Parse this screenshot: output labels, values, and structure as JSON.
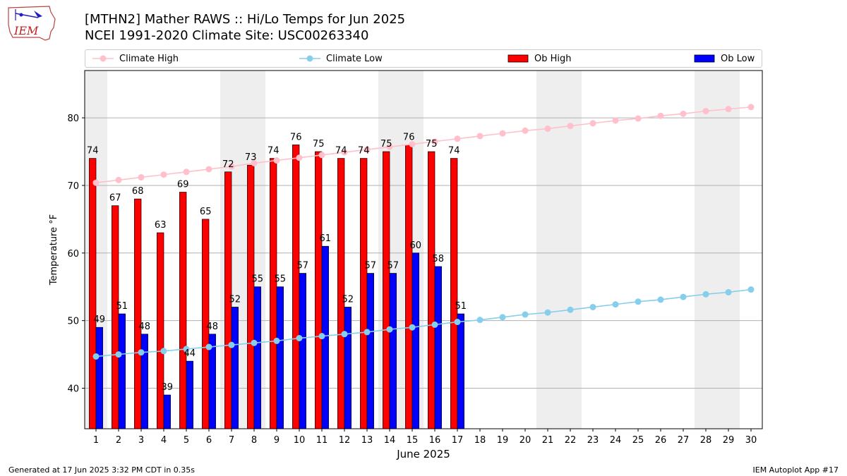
{
  "header": {
    "title_line1": "[MTHN2] Mather RAWS :: Hi/Lo Temps for Jun 2025",
    "title_line2": "NCEI 1991-2020 Climate Site: USC00263340",
    "logo_text": "IEM"
  },
  "legend": {
    "climate_high": "Climate High",
    "climate_low": "Climate Low",
    "ob_high": "Ob High",
    "ob_low": "Ob Low"
  },
  "footer": {
    "left": "Generated at 17 Jun 2025 3:32 PM CDT in 0.35s",
    "right": "IEM Autoplot App #17"
  },
  "colors": {
    "ob_high": "#ff0000",
    "ob_low": "#0000ff",
    "climate_high": "#ffc0cb",
    "climate_low": "#87ceeb",
    "weekend_shade": "#eeeeee",
    "grid": "#b0b0b0"
  },
  "chart_data": {
    "type": "bar",
    "xlabel": "June 2025",
    "ylabel": "Temperature °F",
    "ylim": [
      34,
      87
    ],
    "yticks": [
      40,
      50,
      60,
      70,
      80
    ],
    "grid": "horizontal",
    "legend_position": "top",
    "days": [
      1,
      2,
      3,
      4,
      5,
      6,
      7,
      8,
      9,
      10,
      11,
      12,
      13,
      14,
      15,
      16,
      17,
      18,
      19,
      20,
      21,
      22,
      23,
      24,
      25,
      26,
      27,
      28,
      29,
      30
    ],
    "weekend_days": [
      1,
      7,
      8,
      14,
      15,
      21,
      22,
      28,
      29
    ],
    "series": [
      {
        "name": "Ob High",
        "kind": "bar",
        "values": [
          74,
          67,
          68,
          63,
          69,
          65,
          72,
          73,
          74,
          76,
          75,
          74,
          74,
          75,
          76,
          75,
          74
        ]
      },
      {
        "name": "Ob Low",
        "kind": "bar",
        "values": [
          49,
          51,
          48,
          39,
          44,
          48,
          52,
          55,
          55,
          57,
          61,
          52,
          57,
          57,
          60,
          58,
          51
        ]
      },
      {
        "name": "Climate High",
        "kind": "line",
        "values": [
          70.4,
          70.8,
          71.2,
          71.6,
          72.0,
          72.4,
          72.8,
          73.3,
          73.7,
          74.1,
          74.5,
          74.9,
          75.3,
          75.7,
          76.1,
          76.5,
          76.9,
          77.3,
          77.7,
          78.1,
          78.4,
          78.8,
          79.2,
          79.6,
          79.9,
          80.3,
          80.6,
          81.0,
          81.3,
          81.6
        ]
      },
      {
        "name": "Climate Low",
        "kind": "line",
        "values": [
          44.7,
          45.0,
          45.3,
          45.5,
          45.8,
          46.1,
          46.4,
          46.7,
          47.0,
          47.4,
          47.7,
          48.0,
          48.3,
          48.7,
          49.0,
          49.4,
          49.8,
          50.1,
          50.5,
          50.9,
          51.2,
          51.6,
          52.0,
          52.4,
          52.8,
          53.1,
          53.5,
          53.9,
          54.2,
          54.6
        ]
      }
    ]
  }
}
